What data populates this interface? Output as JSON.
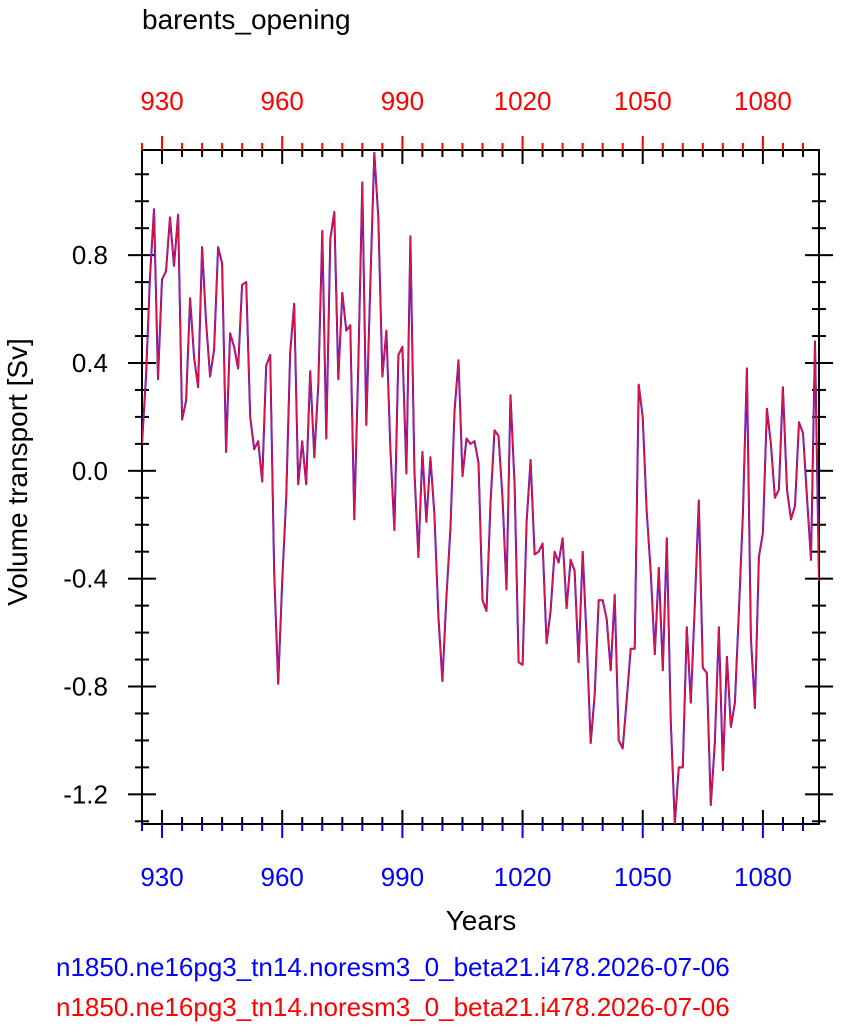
{
  "title": "barents_opening",
  "captions": {
    "blue": "n1850.ne16pg3_tn14.noresm3_0_beta21.i478.2026-07-06",
    "red": "n1850.ne16pg3_tn14.noresm3_0_beta21.i478.2026-07-06"
  },
  "colors": {
    "blue": "#0000ff",
    "red": "#ff0000",
    "line": "#d4144c"
  },
  "chart_data": {
    "type": "line",
    "title": "barents_opening",
    "xlabel": "Years",
    "ylabel": "Volume transport [Sv]",
    "xlim": [
      925,
      1094
    ],
    "ylim": [
      -1.31,
      1.19
    ],
    "xticks": [
      930,
      960,
      990,
      1020,
      1050,
      1080
    ],
    "xtick_labels": [
      "930",
      "960",
      "990",
      "1020",
      "1050",
      "1080"
    ],
    "yticks": [
      0.8,
      0.4,
      0.0,
      -0.4,
      -0.8,
      -1.2
    ],
    "ytick_labels": [
      "0.8",
      "0.4",
      "0.0",
      "-0.4",
      "-0.8",
      "-1.2"
    ],
    "top_axis_color": "red",
    "bottom_axis_color": "blue",
    "series": [
      {
        "color": "blue",
        "x": [
          925,
          926,
          927,
          928,
          929,
          930,
          931,
          932,
          933,
          934,
          935,
          936,
          937,
          938,
          939,
          940,
          941,
          942,
          943,
          944,
          945,
          946,
          947,
          948,
          949,
          950,
          951,
          952,
          953,
          954,
          955,
          956,
          957,
          958,
          959,
          960,
          961,
          962,
          963,
          964,
          965,
          966,
          967,
          968,
          969,
          970,
          971,
          972,
          973,
          974,
          975,
          976,
          977,
          978,
          979,
          980,
          981,
          982,
          983,
          984,
          985,
          986,
          987,
          988,
          989,
          990,
          991,
          992,
          993,
          994,
          995,
          996,
          997,
          998,
          999,
          1000,
          1001,
          1002,
          1003,
          1004,
          1005,
          1006,
          1007,
          1008,
          1009,
          1010,
          1011,
          1012,
          1013,
          1014,
          1015,
          1016,
          1017,
          1018,
          1019,
          1020,
          1021,
          1022,
          1023,
          1024,
          1025,
          1026,
          1027,
          1028,
          1029,
          1030,
          1031,
          1032,
          1033,
          1034,
          1035,
          1036,
          1037,
          1038,
          1039,
          1040,
          1041,
          1042,
          1043,
          1044,
          1045,
          1046,
          1047,
          1048,
          1049,
          1050,
          1051,
          1052,
          1053,
          1054,
          1055,
          1056,
          1057,
          1058,
          1059,
          1060,
          1061,
          1062,
          1063,
          1064,
          1065,
          1066,
          1067,
          1068,
          1069,
          1070,
          1071,
          1072,
          1073,
          1074,
          1075,
          1076,
          1077,
          1078,
          1079,
          1080,
          1081,
          1082,
          1083,
          1084,
          1085,
          1086,
          1087,
          1088,
          1089,
          1090,
          1091,
          1092,
          1093,
          1094
        ],
        "values": [
          0.1,
          0.35,
          0.72,
          0.97,
          0.34,
          0.71,
          0.74,
          0.94,
          0.76,
          0.95,
          0.19,
          0.26,
          0.64,
          0.42,
          0.31,
          0.83,
          0.55,
          0.35,
          0.45,
          0.83,
          0.77,
          0.07,
          0.51,
          0.46,
          0.38,
          0.69,
          0.7,
          0.2,
          0.08,
          0.11,
          -0.04,
          0.39,
          0.43,
          -0.38,
          -0.79,
          -0.41,
          -0.1,
          0.44,
          0.62,
          -0.05,
          0.11,
          -0.05,
          0.37,
          0.05,
          0.32,
          0.89,
          0.12,
          0.86,
          0.96,
          0.34,
          0.66,
          0.52,
          0.54,
          -0.18,
          0.39,
          1.07,
          0.17,
          0.69,
          1.18,
          0.94,
          0.35,
          0.52,
          0.08,
          -0.22,
          0.43,
          0.46,
          -0.01,
          0.87,
          0.0,
          -0.32,
          0.07,
          -0.19,
          0.05,
          -0.16,
          -0.54,
          -0.78,
          -0.47,
          -0.21,
          0.22,
          0.41,
          -0.02,
          0.12,
          0.1,
          0.11,
          0.03,
          -0.48,
          -0.52,
          -0.12,
          0.15,
          0.13,
          -0.1,
          -0.44,
          0.28,
          -0.05,
          -0.71,
          -0.72,
          -0.19,
          0.04,
          -0.31,
          -0.3,
          -0.27,
          -0.64,
          -0.52,
          -0.3,
          -0.34,
          -0.25,
          -0.51,
          -0.33,
          -0.37,
          -0.71,
          -0.3,
          -0.63,
          -1.01,
          -0.83,
          -0.48,
          -0.48,
          -0.55,
          -0.74,
          -0.46,
          -1.0,
          -1.03,
          -0.85,
          -0.66,
          -0.66,
          0.32,
          0.2,
          -0.15,
          -0.38,
          -0.68,
          -0.36,
          -0.74,
          -0.25,
          -0.93,
          -1.31,
          -1.1,
          -1.1,
          -0.58,
          -0.86,
          -0.5,
          -0.11,
          -0.73,
          -0.75,
          -1.24,
          -1.01,
          -0.58,
          -1.11,
          -0.69,
          -0.95,
          -0.86,
          -0.52,
          -0.16,
          0.38,
          -0.62,
          -0.88,
          -0.32,
          -0.23,
          0.23,
          0.1,
          -0.1,
          -0.07,
          0.31,
          -0.07,
          -0.18,
          -0.13,
          0.18,
          0.14,
          -0.1,
          -0.33,
          0.48,
          -0.41
        ]
      },
      {
        "color": "red",
        "x": [
          925,
          926,
          927,
          928,
          929,
          930,
          931,
          932,
          933,
          934,
          935,
          936,
          937,
          938,
          939,
          940,
          941,
          942,
          943,
          944,
          945,
          946,
          947,
          948,
          949,
          950,
          951,
          952,
          953,
          954,
          955,
          956,
          957,
          958,
          959,
          960,
          961,
          962,
          963,
          964,
          965,
          966,
          967,
          968,
          969,
          970,
          971,
          972,
          973,
          974,
          975,
          976,
          977,
          978,
          979,
          980,
          981,
          982,
          983,
          984,
          985,
          986,
          987,
          988,
          989,
          990,
          991,
          992,
          993,
          994,
          995,
          996,
          997,
          998,
          999,
          1000,
          1001,
          1002,
          1003,
          1004,
          1005,
          1006,
          1007,
          1008,
          1009,
          1010,
          1011,
          1012,
          1013,
          1014,
          1015,
          1016,
          1017,
          1018,
          1019,
          1020,
          1021,
          1022,
          1023,
          1024,
          1025,
          1026,
          1027,
          1028,
          1029,
          1030,
          1031,
          1032,
          1033,
          1034,
          1035,
          1036,
          1037,
          1038,
          1039,
          1040,
          1041,
          1042,
          1043,
          1044,
          1045,
          1046,
          1047,
          1048,
          1049,
          1050,
          1051,
          1052,
          1053,
          1054,
          1055,
          1056,
          1057,
          1058,
          1059,
          1060,
          1061,
          1062,
          1063,
          1064,
          1065,
          1066,
          1067,
          1068,
          1069,
          1070,
          1071,
          1072,
          1073,
          1074,
          1075,
          1076,
          1077,
          1078,
          1079,
          1080,
          1081,
          1082,
          1083,
          1084,
          1085,
          1086,
          1087,
          1088,
          1089,
          1090,
          1091,
          1092,
          1093,
          1094
        ],
        "values": [
          0.1,
          0.35,
          0.72,
          0.97,
          0.34,
          0.71,
          0.74,
          0.94,
          0.76,
          0.95,
          0.19,
          0.26,
          0.64,
          0.42,
          0.31,
          0.83,
          0.55,
          0.35,
          0.45,
          0.83,
          0.77,
          0.07,
          0.51,
          0.46,
          0.38,
          0.69,
          0.7,
          0.2,
          0.08,
          0.11,
          -0.04,
          0.39,
          0.43,
          -0.38,
          -0.79,
          -0.41,
          -0.1,
          0.44,
          0.62,
          -0.05,
          0.11,
          -0.05,
          0.37,
          0.05,
          0.32,
          0.89,
          0.12,
          0.86,
          0.96,
          0.34,
          0.66,
          0.52,
          0.54,
          -0.18,
          0.39,
          1.07,
          0.17,
          0.69,
          1.18,
          0.94,
          0.35,
          0.52,
          0.08,
          -0.22,
          0.43,
          0.46,
          -0.01,
          0.87,
          0.0,
          -0.32,
          0.07,
          -0.19,
          0.05,
          -0.16,
          -0.54,
          -0.78,
          -0.47,
          -0.21,
          0.22,
          0.41,
          -0.02,
          0.12,
          0.1,
          0.11,
          0.03,
          -0.48,
          -0.52,
          -0.12,
          0.15,
          0.13,
          -0.1,
          -0.44,
          0.28,
          -0.05,
          -0.71,
          -0.72,
          -0.19,
          0.04,
          -0.31,
          -0.3,
          -0.27,
          -0.64,
          -0.52,
          -0.3,
          -0.34,
          -0.25,
          -0.51,
          -0.33,
          -0.37,
          -0.71,
          -0.3,
          -0.63,
          -1.01,
          -0.83,
          -0.48,
          -0.48,
          -0.55,
          -0.74,
          -0.46,
          -1.0,
          -1.03,
          -0.85,
          -0.66,
          -0.66,
          0.32,
          0.2,
          -0.15,
          -0.38,
          -0.68,
          -0.36,
          -0.74,
          -0.25,
          -0.93,
          -1.31,
          -1.1,
          -1.1,
          -0.58,
          -0.86,
          -0.5,
          -0.11,
          -0.73,
          -0.75,
          -1.24,
          -1.01,
          -0.58,
          -1.11,
          -0.69,
          -0.95,
          -0.86,
          -0.52,
          -0.16,
          0.38,
          -0.62,
          -0.88,
          -0.32,
          -0.23,
          0.23,
          0.1,
          -0.1,
          -0.07,
          0.31,
          -0.07,
          -0.18,
          -0.13,
          0.18,
          0.14,
          -0.1,
          -0.33,
          0.48,
          -0.41
        ]
      }
    ]
  }
}
